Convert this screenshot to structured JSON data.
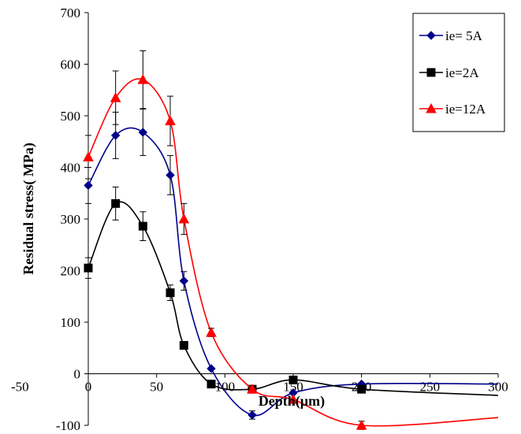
{
  "chart_data": {
    "type": "line",
    "title": "",
    "xlabel": "Depth(µm)",
    "ylabel": "Residual stress( MPa)",
    "xlim": [
      -50,
      300
    ],
    "ylim": [
      -100,
      700
    ],
    "xticks": [
      -50,
      0,
      50,
      100,
      150,
      200,
      250,
      300
    ],
    "yticks": [
      -100,
      0,
      100,
      200,
      300,
      400,
      500,
      600,
      700
    ],
    "grid": false,
    "legend_position": "top-right",
    "series": [
      {
        "name": "ie= 5A",
        "color": "#00008b",
        "marker": "diamond",
        "x": [
          0,
          20,
          40,
          60,
          70,
          90,
          120,
          150,
          200
        ],
        "y": [
          365,
          462,
          468,
          385,
          180,
          10,
          -80,
          -37,
          -20
        ],
        "err": [
          35,
          45,
          45,
          38,
          18,
          0,
          8,
          0,
          0
        ],
        "curve_tail": [
          300,
          -20
        ]
      },
      {
        "name": "ie=2A",
        "color": "#000000",
        "marker": "square",
        "x": [
          0,
          20,
          40,
          60,
          70,
          90,
          120,
          150,
          200
        ],
        "y": [
          205,
          330,
          286,
          157,
          55,
          -20,
          -30,
          -12,
          -30
        ],
        "err": [
          20,
          32,
          28,
          15,
          0,
          0,
          0,
          0,
          0
        ],
        "curve_tail": [
          300,
          -42
        ]
      },
      {
        "name": "ie=12A",
        "color": "#ff0000",
        "marker": "triangle",
        "x": [
          0,
          20,
          40,
          60,
          70,
          90,
          120,
          150,
          200
        ],
        "y": [
          420,
          535,
          570,
          490,
          300,
          80,
          -30,
          -50,
          -100
        ],
        "err": [
          42,
          52,
          56,
          48,
          30,
          8,
          0,
          0,
          8
        ],
        "curve_tail": [
          300,
          -85
        ]
      }
    ]
  }
}
